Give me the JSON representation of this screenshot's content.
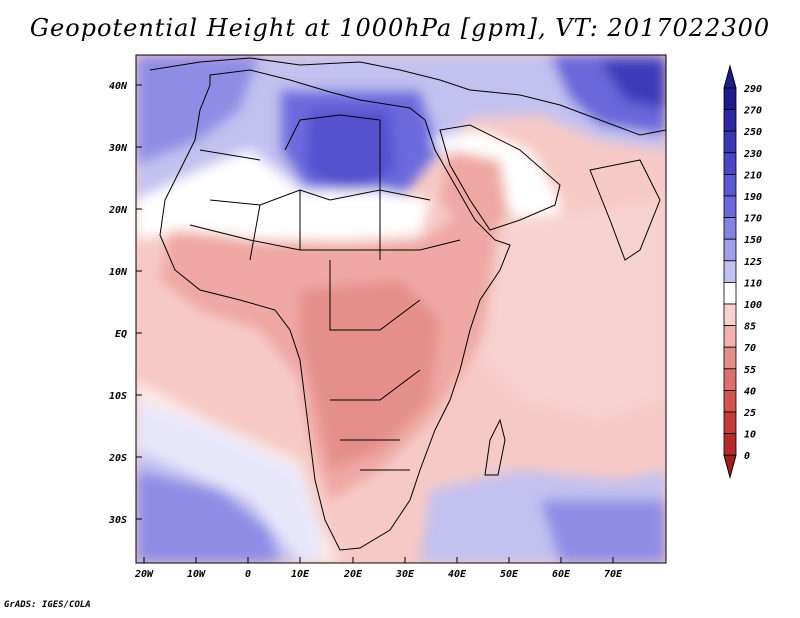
{
  "title": "Geopotential Height at 1000hPa [gpm], VT: 2017022300",
  "credit": "GrADS: IGES/COLA",
  "map": {
    "lat_labels": [
      "40N",
      "30N",
      "20N",
      "10N",
      "EQ",
      "10S",
      "20S",
      "30S"
    ],
    "lon_labels": [
      "20W",
      "10W",
      "0",
      "10E",
      "20E",
      "30E",
      "40E",
      "50E",
      "60E",
      "70E"
    ]
  },
  "colorbar": {
    "levels": [
      "290",
      "270",
      "250",
      "230",
      "210",
      "190",
      "170",
      "150",
      "125",
      "110",
      "100",
      "85",
      "70",
      "55",
      "40",
      "25",
      "10",
      "0"
    ],
    "colors": [
      "#1f1a8f",
      "#2b2aa3",
      "#3a37b5",
      "#4a47c6",
      "#5b58d4",
      "#6d6ade",
      "#8582e4",
      "#a19eea",
      "#c2c0f0",
      "#ffffff",
      "#f8d2d0",
      "#f1b1ad",
      "#e58f8a",
      "#db6f6a",
      "#d2534f",
      "#c53b38",
      "#b52a27",
      "#a01f1e"
    ]
  }
}
